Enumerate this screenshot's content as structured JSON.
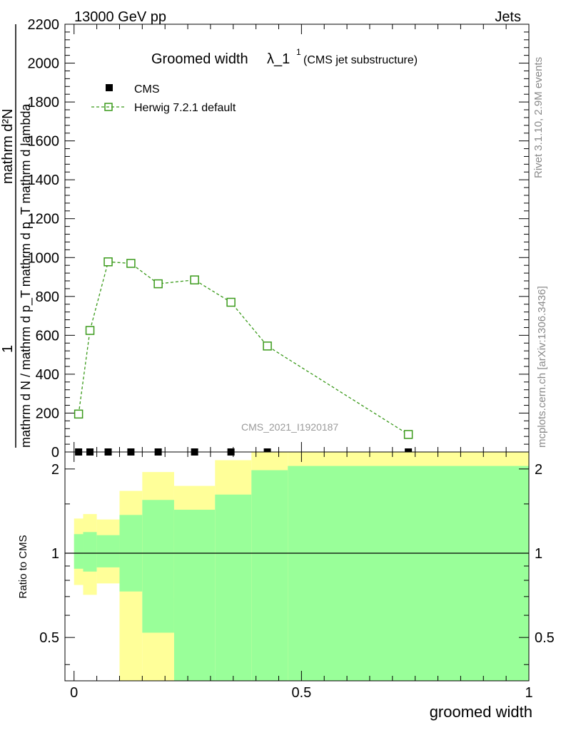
{
  "header": {
    "left": "13000 GeV pp",
    "right": "Jets"
  },
  "side_labels": {
    "rivet": "Rivet 3.1.10,  2.9M events",
    "mcplots": "mcplots.cern.ch [arXiv:1306.3436]"
  },
  "colors": {
    "herwig": "#3a9a1a",
    "band_outer": "#ffff99",
    "band_inner": "#99ff99"
  },
  "chart_data": [
    {
      "type": "line",
      "title_main": "Groomed width",
      "title_symbol": "λ_1",
      "title_sup": "1",
      "title_sub": "(CMS jet substructure)",
      "watermark": "CMS_2021_I1920187",
      "ylabel_num": "1",
      "ylabel_den": "mathrm d N / mathrm d p_T mathrm d p_T mathrm d lambda",
      "ylabel_stack": "mathrm d²N",
      "ylim": [
        0,
        2200
      ],
      "yticks": [
        "0",
        "200",
        "400",
        "600",
        "800",
        "1000",
        "1200",
        "1400",
        "1600",
        "1800",
        "2000",
        "2200"
      ],
      "xlim": [
        -0.02,
        1.0
      ],
      "legend": [
        {
          "label": "CMS",
          "marker": "filled-square"
        },
        {
          "label": "Herwig 7.2.1 default",
          "marker": "open-square-dashed"
        }
      ],
      "series": [
        {
          "name": "CMS",
          "x": [
            0.01,
            0.035,
            0.075,
            0.125,
            0.185,
            0.265,
            0.345,
            0.425,
            0.735
          ],
          "values": [
            0,
            0,
            0,
            0,
            0,
            0,
            0,
            0,
            0
          ]
        },
        {
          "name": "Herwig 7.2.1 default",
          "x": [
            0.01,
            0.035,
            0.075,
            0.125,
            0.185,
            0.265,
            0.345,
            0.425,
            0.735
          ],
          "values": [
            195,
            625,
            978,
            970,
            865,
            885,
            770,
            545,
            90
          ],
          "errors": [
            10,
            20,
            20,
            20,
            12,
            12,
            12,
            10,
            5
          ]
        }
      ],
      "legend_position": "top-left"
    },
    {
      "type": "area",
      "ylabel": "Ratio to CMS",
      "xlabel": "groomed width",
      "ylim": [
        0.35,
        2.3
      ],
      "log_y": true,
      "yticks": [
        "0.5",
        "1",
        "2"
      ],
      "xticks": [
        "0",
        "0.5",
        "1"
      ],
      "bins": [
        {
          "lo": 0.0,
          "hi": 0.02,
          "inner": [
            0.88,
            1.17
          ],
          "outer": [
            0.77,
            1.33
          ]
        },
        {
          "lo": 0.02,
          "hi": 0.05,
          "inner": [
            0.86,
            1.19
          ],
          "outer": [
            0.71,
            1.38
          ]
        },
        {
          "lo": 0.05,
          "hi": 0.1,
          "inner": [
            0.89,
            1.16
          ],
          "outer": [
            0.78,
            1.32
          ]
        },
        {
          "lo": 0.1,
          "hi": 0.15,
          "inner": [
            0.73,
            1.37
          ],
          "outer": [
            0.35,
            1.67
          ]
        },
        {
          "lo": 0.15,
          "hi": 0.22,
          "inner": [
            0.52,
            1.55
          ],
          "outer": [
            0.35,
            1.95
          ]
        },
        {
          "lo": 0.22,
          "hi": 0.31,
          "inner": [
            0.35,
            1.43
          ],
          "outer": [
            0.69,
            1.74
          ]
        },
        {
          "lo": 0.31,
          "hi": 0.39,
          "inner": [
            0.35,
            1.62
          ],
          "outer": [
            0.38,
            2.15
          ]
        },
        {
          "lo": 0.39,
          "hi": 0.47,
          "inner": [
            0.35,
            1.98
          ],
          "outer": [
            0.35,
            2.3
          ]
        },
        {
          "lo": 0.47,
          "hi": 1.0,
          "inner": [
            0.35,
            2.05
          ],
          "outer": [
            0.35,
            2.3
          ]
        }
      ]
    }
  ]
}
